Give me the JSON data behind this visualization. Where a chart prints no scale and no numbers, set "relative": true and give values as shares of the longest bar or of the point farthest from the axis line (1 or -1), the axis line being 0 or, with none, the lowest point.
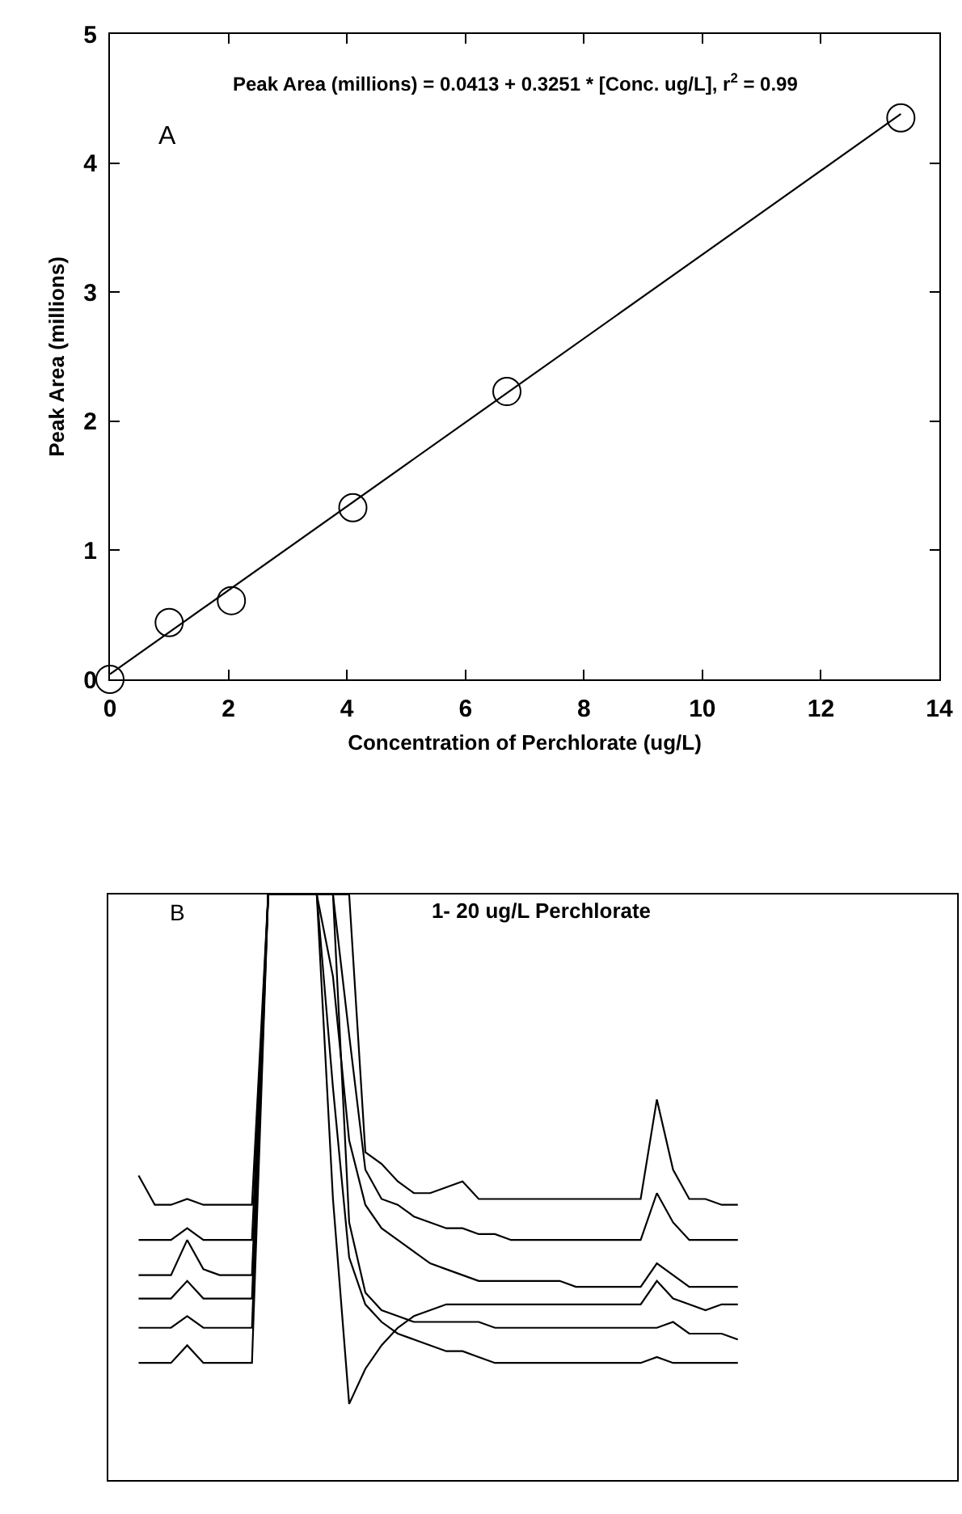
{
  "chart_data": [
    {
      "type": "scatter",
      "xlabel": "Concentration of Perchlorate (ug/L)",
      "ylabel": "Peak Area (millions)",
      "annotations": [
        "Peak Area (millions) = 0.0413 + 0.3251 * [Conc. ug/L], r$^{2}$ = 0.99",
        "A"
      ],
      "series": [
        {
          "type": "scatter",
          "color": "#000000",
          "x": [
            0,
            1,
            2.05,
            4.1,
            6.7,
            13.35
          ],
          "values": [
            0,
            0.44,
            0.61,
            1.33,
            2.23,
            4.35
          ]
        },
        {
          "type": "line",
          "marker": "none",
          "color": "#000000",
          "x": [
            0,
            13.35
          ],
          "values": [
            0.04,
            4.38
          ]
        }
      ],
      "xlim": [
        0,
        14
      ],
      "xticks": [
        0,
        2,
        4,
        6,
        8,
        10,
        12,
        14
      ],
      "ylim": [
        0,
        5
      ],
      "yticks": [
        0,
        1,
        2,
        3,
        4,
        5
      ],
      "marker": "circle",
      "grid": false
    },
    {
      "type": "line",
      "title": "1- 20 ug/L Perchlorate",
      "annotations": [
        "B"
      ],
      "relative": true,
      "marker": "none",
      "grid": false,
      "tick_labels": false,
      "categories": [
        null,
        null,
        null,
        null,
        null,
        null,
        null,
        null,
        null,
        null,
        null,
        null,
        null,
        null,
        null,
        null,
        null,
        null,
        null,
        null,
        null,
        null,
        null,
        null,
        null,
        null,
        null,
        null,
        null,
        null,
        null,
        null,
        null,
        null,
        null,
        null,
        null,
        null
      ],
      "series": [
        {
          "color": "#000000",
          "values": [
            0.52,
            0.47,
            0.47,
            0.48,
            0.47,
            0.47,
            0.47,
            0.47,
            1,
            1,
            1,
            1,
            1,
            1,
            0.56,
            0.54,
            0.51,
            0.49,
            0.49,
            0.5,
            0.51,
            0.48,
            0.48,
            0.48,
            0.48,
            0.48,
            0.48,
            0.48,
            0.48,
            0.48,
            0.48,
            0.48,
            0.65,
            0.53,
            0.48,
            0.48,
            0.47,
            0.47
          ]
        },
        {
          "color": "#000000",
          "values": [
            0.41,
            0.41,
            0.41,
            0.43,
            0.41,
            0.41,
            0.41,
            0.41,
            1,
            1,
            1,
            1,
            1,
            0.76,
            0.53,
            0.48,
            0.47,
            0.45,
            0.44,
            0.43,
            0.43,
            0.42,
            0.42,
            0.41,
            0.41,
            0.41,
            0.41,
            0.41,
            0.41,
            0.41,
            0.41,
            0.41,
            0.49,
            0.44,
            0.41,
            0.41,
            0.41,
            0.41
          ]
        },
        {
          "color": "#000000",
          "values": [
            0.35,
            0.35,
            0.35,
            0.41,
            0.36,
            0.35,
            0.35,
            0.35,
            1,
            1,
            1,
            1,
            0.86,
            0.58,
            0.47,
            0.43,
            0.41,
            0.39,
            0.37,
            0.36,
            0.35,
            0.34,
            0.34,
            0.34,
            0.34,
            0.34,
            0.34,
            0.33,
            0.33,
            0.33,
            0.33,
            0.33,
            0.37,
            0.35,
            0.33,
            0.33,
            0.33,
            0.33
          ]
        },
        {
          "color": "#000000",
          "values": [
            0.31,
            0.31,
            0.31,
            0.34,
            0.31,
            0.31,
            0.31,
            0.31,
            1,
            1,
            1,
            1,
            0.48,
            0.13,
            0.19,
            0.23,
            0.26,
            0.28,
            0.29,
            0.3,
            0.3,
            0.3,
            0.3,
            0.3,
            0.3,
            0.3,
            0.3,
            0.3,
            0.3,
            0.3,
            0.3,
            0.3,
            0.34,
            0.31,
            0.3,
            0.29,
            0.3,
            0.3
          ]
        },
        {
          "color": "#000000",
          "values": [
            0.26,
            0.26,
            0.26,
            0.28,
            0.26,
            0.26,
            0.26,
            0.26,
            1,
            1,
            1,
            1,
            1,
            0.44,
            0.32,
            0.29,
            0.28,
            0.27,
            0.27,
            0.27,
            0.27,
            0.27,
            0.26,
            0.26,
            0.26,
            0.26,
            0.26,
            0.26,
            0.26,
            0.26,
            0.26,
            0.26,
            0.26,
            0.27,
            0.25,
            0.25,
            0.25,
            0.24
          ]
        },
        {
          "color": "#000000",
          "values": [
            0.2,
            0.2,
            0.2,
            0.23,
            0.2,
            0.2,
            0.2,
            0.2,
            1,
            1,
            1,
            1,
            0.67,
            0.38,
            0.3,
            0.27,
            0.25,
            0.24,
            0.23,
            0.22,
            0.22,
            0.21,
            0.2,
            0.2,
            0.2,
            0.2,
            0.2,
            0.2,
            0.2,
            0.2,
            0.2,
            0.2,
            0.21,
            0.2,
            0.2,
            0.2,
            0.2,
            0.2
          ]
        }
      ]
    }
  ]
}
